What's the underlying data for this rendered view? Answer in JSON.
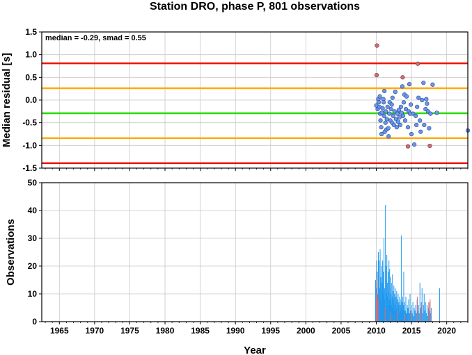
{
  "chart_data": {
    "title": "Station DRO, phase P, 801 observations",
    "xlabel": "Year",
    "x_range": [
      1962.5,
      2023
    ],
    "x_ticks": [
      1965,
      1970,
      1975,
      1980,
      1985,
      1990,
      1995,
      2000,
      2005,
      2010,
      2015,
      2020
    ],
    "grid": true,
    "panels": [
      {
        "type": "scatter",
        "ylabel": "Median residual [s]",
        "ylim": [
          -1.5,
          1.5
        ],
        "y_ticks": [
          -1.5,
          -1.0,
          -0.5,
          0.0,
          0.5,
          1.0,
          1.5
        ],
        "annotation": "median = -0.29, smad = 0.55",
        "reference_lines": [
          {
            "y": 0.81,
            "color": "#ee1100"
          },
          {
            "y": 0.26,
            "color": "#ffaa00"
          },
          {
            "y": -0.29,
            "color": "#22dd00"
          },
          {
            "y": -0.84,
            "color": "#ffaa00"
          },
          {
            "y": -1.39,
            "color": "#ee1100"
          }
        ],
        "series": [
          {
            "color": "#6699ee",
            "points": [
              [
                2010.0,
                -0.12
              ],
              [
                2010.2,
                -0.2
              ],
              [
                2010.3,
                0.02
              ],
              [
                2010.35,
                -0.05
              ],
              [
                2010.45,
                -0.15
              ],
              [
                2010.5,
                0.08
              ],
              [
                2010.55,
                -0.3
              ],
              [
                2010.6,
                -0.45
              ],
              [
                2010.7,
                -0.6
              ],
              [
                2010.75,
                -0.75
              ],
              [
                2010.8,
                -0.28
              ],
              [
                2010.9,
                -0.18
              ],
              [
                2011.0,
                0.02
              ],
              [
                2011.05,
                -0.05
              ],
              [
                2011.1,
                -0.35
              ],
              [
                2011.15,
                0.2
              ],
              [
                2011.2,
                -0.7
              ],
              [
                2011.3,
                -0.5
              ],
              [
                2011.35,
                -0.25
              ],
              [
                2011.45,
                -0.65
              ],
              [
                2011.5,
                -0.42
              ],
              [
                2011.6,
                -0.15
              ],
              [
                2011.7,
                -0.62
              ],
              [
                2011.75,
                -0.8
              ],
              [
                2011.85,
                -0.3
              ],
              [
                2011.9,
                -0.05
              ],
              [
                2012.0,
                -0.45
              ],
              [
                2012.1,
                -0.2
              ],
              [
                2012.2,
                -0.1
              ],
              [
                2012.25,
                -0.5
              ],
              [
                2012.3,
                0.05
              ],
              [
                2012.4,
                -0.35
              ],
              [
                2012.5,
                -0.55
              ],
              [
                2012.6,
                -0.25
              ],
              [
                2012.7,
                0.18
              ],
              [
                2012.8,
                -0.42
              ],
              [
                2012.9,
                -0.6
              ],
              [
                2013.0,
                -0.3
              ],
              [
                2013.1,
                -0.48
              ],
              [
                2013.2,
                -0.22
              ],
              [
                2013.3,
                -0.38
              ],
              [
                2013.4,
                -0.55
              ],
              [
                2013.5,
                -0.15
              ],
              [
                2013.6,
                -0.28
              ],
              [
                2013.7,
                0.3
              ],
              [
                2013.8,
                -0.35
              ],
              [
                2013.9,
                -0.05
              ],
              [
                2014.0,
                0.12
              ],
              [
                2014.1,
                -0.45
              ],
              [
                2014.2,
                -0.2
              ],
              [
                2014.3,
                0.08
              ],
              [
                2014.5,
                -0.6
              ],
              [
                2014.6,
                -0.25
              ],
              [
                2014.7,
                0.35
              ],
              [
                2014.8,
                -0.3
              ],
              [
                2014.9,
                -0.1
              ],
              [
                2015.0,
                -0.75
              ],
              [
                2015.2,
                -0.3
              ],
              [
                2015.4,
                -0.98
              ],
              [
                2015.6,
                -0.35
              ],
              [
                2015.7,
                -0.55
              ],
              [
                2015.8,
                -0.15
              ],
              [
                2016.0,
                0.05
              ],
              [
                2016.2,
                -0.45
              ],
              [
                2016.3,
                -0.7
              ],
              [
                2016.5,
                0.0
              ],
              [
                2016.7,
                0.38
              ],
              [
                2016.8,
                -0.55
              ],
              [
                2017.0,
                -0.2
              ],
              [
                2017.1,
                0.02
              ],
              [
                2017.2,
                -0.08
              ],
              [
                2017.35,
                -0.25
              ],
              [
                2017.5,
                -0.62
              ],
              [
                2017.7,
                -0.3
              ],
              [
                2018.0,
                0.34
              ],
              [
                2018.6,
                -0.28
              ],
              [
                2023.0,
                -0.67
              ]
            ]
          },
          {
            "color": "#ee6655",
            "points": [
              [
                2010.1,
                1.2
              ],
              [
                2010.05,
                0.55
              ],
              [
                2013.75,
                0.5
              ],
              [
                2015.9,
                0.8
              ],
              [
                2014.5,
                -1.02
              ],
              [
                2017.6,
                -1.01
              ]
            ]
          }
        ]
      },
      {
        "type": "bar",
        "ylabel": "Observations",
        "ylim": [
          0,
          50
        ],
        "y_ticks": [
          0,
          10,
          20,
          30,
          40,
          50
        ],
        "series": [
          {
            "color": "#2299ee",
            "bars": [
              [
                2009.9,
                15
              ],
              [
                2010.0,
                12
              ],
              [
                2010.05,
                22
              ],
              [
                2010.1,
                8
              ],
              [
                2010.15,
                18
              ],
              [
                2010.2,
                10
              ],
              [
                2010.3,
                25
              ],
              [
                2010.35,
                14
              ],
              [
                2010.4,
                22
              ],
              [
                2010.45,
                9
              ],
              [
                2010.5,
                12
              ],
              [
                2010.55,
                26
              ],
              [
                2010.6,
                8
              ],
              [
                2010.65,
                16
              ],
              [
                2010.7,
                11
              ],
              [
                2010.75,
                20
              ],
              [
                2010.8,
                7
              ],
              [
                2010.85,
                14
              ],
              [
                2010.9,
                22
              ],
              [
                2010.95,
                10
              ],
              [
                2011.0,
                18
              ],
              [
                2011.05,
                13
              ],
              [
                2011.1,
                30
              ],
              [
                2011.15,
                8
              ],
              [
                2011.2,
                12
              ],
              [
                2011.3,
                42
              ],
              [
                2011.35,
                15
              ],
              [
                2011.4,
                20
              ],
              [
                2011.45,
                10
              ],
              [
                2011.5,
                24
              ],
              [
                2011.55,
                9
              ],
              [
                2011.6,
                14
              ],
              [
                2011.65,
                6
              ],
              [
                2011.7,
                18
              ],
              [
                2011.75,
                11
              ],
              [
                2011.8,
                22
              ],
              [
                2011.85,
                8
              ],
              [
                2011.9,
                19
              ],
              [
                2011.95,
                12
              ],
              [
                2012.0,
                16
              ],
              [
                2012.05,
                7
              ],
              [
                2012.1,
                10
              ],
              [
                2012.15,
                14
              ],
              [
                2012.2,
                6
              ],
              [
                2012.25,
                9
              ],
              [
                2012.3,
                17
              ],
              [
                2012.35,
                5
              ],
              [
                2012.4,
                11
              ],
              [
                2012.45,
                8
              ],
              [
                2012.5,
                13
              ],
              [
                2012.55,
                6
              ],
              [
                2012.6,
                10
              ],
              [
                2012.65,
                4
              ],
              [
                2012.7,
                12
              ],
              [
                2012.75,
                7
              ],
              [
                2012.8,
                9
              ],
              [
                2012.85,
                5
              ],
              [
                2012.9,
                11
              ],
              [
                2012.95,
                6
              ],
              [
                2013.0,
                8
              ],
              [
                2013.05,
                4
              ],
              [
                2013.1,
                10
              ],
              [
                2013.15,
                6
              ],
              [
                2013.2,
                7
              ],
              [
                2013.25,
                3
              ],
              [
                2013.3,
                9
              ],
              [
                2013.35,
                5
              ],
              [
                2013.4,
                6
              ],
              [
                2013.45,
                4
              ],
              [
                2013.5,
                8
              ],
              [
                2013.55,
                31
              ],
              [
                2013.6,
                5
              ],
              [
                2013.65,
                7
              ],
              [
                2013.7,
                3
              ],
              [
                2013.75,
                9
              ],
              [
                2013.8,
                4
              ],
              [
                2013.85,
                6
              ],
              [
                2013.9,
                18
              ],
              [
                2013.95,
                5
              ],
              [
                2014.0,
                7
              ],
              [
                2014.1,
                4
              ],
              [
                2014.2,
                9
              ],
              [
                2014.3,
                3
              ],
              [
                2014.4,
                6
              ],
              [
                2014.5,
                5
              ],
              [
                2014.6,
                8
              ],
              [
                2014.7,
                3
              ],
              [
                2014.8,
                10
              ],
              [
                2014.9,
                4
              ],
              [
                2015.0,
                6
              ],
              [
                2015.1,
                3
              ],
              [
                2015.2,
                7
              ],
              [
                2015.3,
                2
              ],
              [
                2015.4,
                5
              ],
              [
                2015.5,
                4
              ],
              [
                2015.6,
                6
              ],
              [
                2015.7,
                3
              ],
              [
                2015.8,
                8
              ],
              [
                2015.9,
                4
              ],
              [
                2016.0,
                6
              ],
              [
                2016.1,
                3
              ],
              [
                2016.2,
                14
              ],
              [
                2016.3,
                5
              ],
              [
                2016.4,
                7
              ],
              [
                2016.5,
                12
              ],
              [
                2016.6,
                3
              ],
              [
                2016.7,
                6
              ],
              [
                2016.8,
                10
              ],
              [
                2016.9,
                4
              ],
              [
                2017.0,
                7
              ],
              [
                2017.1,
                3
              ],
              [
                2017.2,
                6
              ],
              [
                2017.3,
                2
              ],
              [
                2017.4,
                5
              ],
              [
                2017.5,
                4
              ],
              [
                2017.6,
                7
              ],
              [
                2017.7,
                3
              ],
              [
                2017.8,
                5
              ],
              [
                2019.0,
                12
              ],
              [
                2023.0,
                5
              ]
            ]
          },
          {
            "color": "#ee6666",
            "bars": [
              [
                2010.0,
                10
              ],
              [
                2010.1,
                16
              ],
              [
                2010.25,
                8
              ],
              [
                2011.25,
                5
              ],
              [
                2012.0,
                3
              ],
              [
                2013.0,
                4
              ],
              [
                2014.05,
                3
              ],
              [
                2015.0,
                4
              ],
              [
                2015.85,
                9
              ],
              [
                2016.45,
                6
              ],
              [
                2017.45,
                7
              ],
              [
                2017.65,
                8
              ]
            ]
          }
        ]
      }
    ]
  }
}
